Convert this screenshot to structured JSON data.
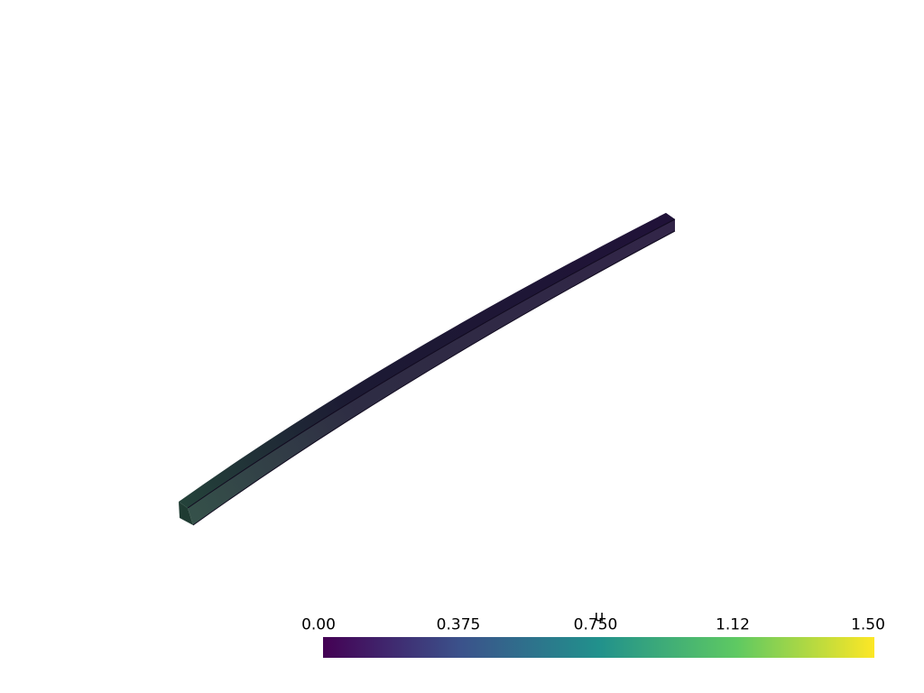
{
  "scalar_bar": {
    "title": "u",
    "range": [
      0.0,
      1.5
    ],
    "colormap": "viridis",
    "ticks": [
      "0.00",
      "0.375",
      "0.750",
      "1.12",
      "1.50"
    ],
    "stops": [
      "#440154",
      "#3b528b",
      "#21918c",
      "#5ec962",
      "#fde725"
    ]
  },
  "beam": {
    "colors": {
      "fixed_end_face": "#1f3b32",
      "fixed_end": "#24433a",
      "body": "#1c1a33",
      "free_end": "#201238",
      "edge": "#120b20"
    }
  }
}
